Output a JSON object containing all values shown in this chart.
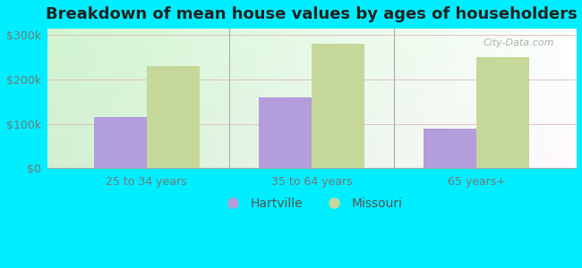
{
  "title": "Breakdown of mean house values by ages of householders",
  "categories": [
    "25 to 34 years",
    "35 to 64 years",
    "65 years+"
  ],
  "hartville_values": [
    115000,
    160000,
    90000
  ],
  "missouri_values": [
    230000,
    280000,
    250000
  ],
  "hartville_color": "#b39ddb",
  "missouri_color": "#c5d89a",
  "ylim": [
    0,
    315000
  ],
  "yticks": [
    0,
    100000,
    200000,
    300000
  ],
  "ytick_labels": [
    "$0",
    "$100k",
    "$200k",
    "$300k"
  ],
  "outer_bg": "#00eeff",
  "plot_bg_topleft": "#d4f5d4",
  "plot_bg_bottomright": "#f8fff8",
  "bar_width": 0.32,
  "title_fontsize": 13,
  "tick_fontsize": 9,
  "legend_fontsize": 10,
  "figsize": [
    6.5,
    3.0
  ],
  "dpi": 100
}
